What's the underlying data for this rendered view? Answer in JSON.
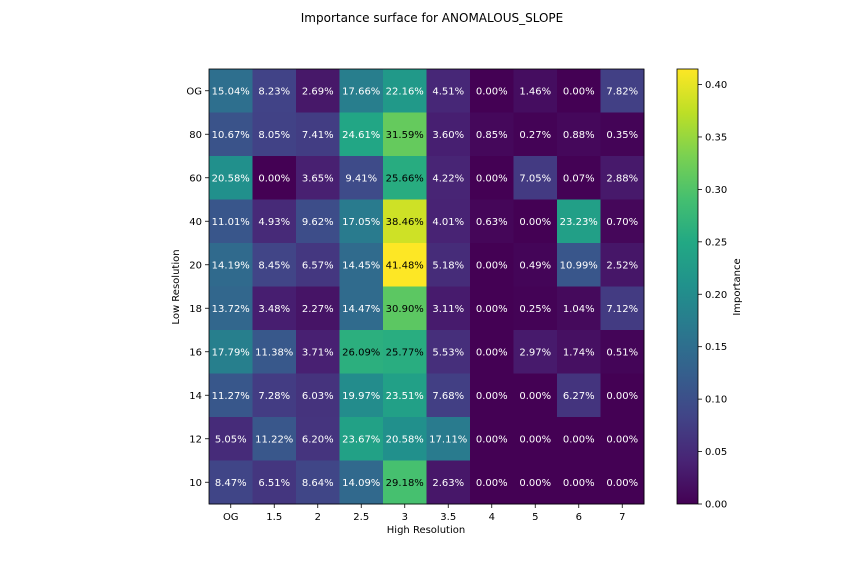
{
  "chart_data": {
    "type": "heatmap",
    "title": "Importance surface for ANOMALOUS_SLOPE",
    "xlabel": "High Resolution",
    "ylabel": "Low Resolution",
    "x_categories": [
      "OG",
      "1.5",
      "2",
      "2.5",
      "3",
      "3.5",
      "4",
      "5",
      "6",
      "7"
    ],
    "y_categories": [
      "OG",
      "80",
      "60",
      "40",
      "20",
      "18",
      "16",
      "14",
      "12",
      "10"
    ],
    "values": [
      [
        0.1504,
        0.0823,
        0.0269,
        0.1766,
        0.2216,
        0.0451,
        0.0,
        0.0146,
        0.0,
        0.0782
      ],
      [
        0.1067,
        0.0805,
        0.0741,
        0.2461,
        0.3159,
        0.036,
        0.0085,
        0.0027,
        0.0088,
        0.0035
      ],
      [
        0.2058,
        0.0,
        0.0365,
        0.0941,
        0.2566,
        0.0422,
        0.0,
        0.0705,
        0.0007,
        0.0288
      ],
      [
        0.1101,
        0.0493,
        0.0962,
        0.1705,
        0.3846,
        0.0401,
        0.0063,
        0.0,
        0.2323,
        0.007
      ],
      [
        0.1419,
        0.0845,
        0.0657,
        0.1445,
        0.4148,
        0.0518,
        0.0,
        0.0049,
        0.1099,
        0.0252
      ],
      [
        0.1372,
        0.0348,
        0.0227,
        0.1447,
        0.309,
        0.0311,
        0.0,
        0.0025,
        0.0104,
        0.0712
      ],
      [
        0.1779,
        0.1138,
        0.0371,
        0.2609,
        0.2577,
        0.0553,
        0.0,
        0.0297,
        0.0174,
        0.0051
      ],
      [
        0.1127,
        0.0728,
        0.0603,
        0.1997,
        0.2351,
        0.0768,
        0.0,
        0.0,
        0.0627,
        0.0
      ],
      [
        0.0505,
        0.1122,
        0.062,
        0.2367,
        0.2058,
        0.1711,
        0.0,
        0.0,
        0.0,
        0.0
      ],
      [
        0.0847,
        0.0651,
        0.0864,
        0.1409,
        0.2918,
        0.0263,
        0.0,
        0.0,
        0.0,
        0.0
      ]
    ],
    "cell_labels": [
      [
        "15.04%",
        "8.23%",
        "2.69%",
        "17.66%",
        "22.16%",
        "4.51%",
        "0.00%",
        "1.46%",
        "0.00%",
        "7.82%"
      ],
      [
        "10.67%",
        "8.05%",
        "7.41%",
        "24.61%",
        "31.59%",
        "3.60%",
        "0.85%",
        "0.27%",
        "0.88%",
        "0.35%"
      ],
      [
        "20.58%",
        "0.00%",
        "3.65%",
        "9.41%",
        "25.66%",
        "4.22%",
        "0.00%",
        "7.05%",
        "0.07%",
        "2.88%"
      ],
      [
        "11.01%",
        "4.93%",
        "9.62%",
        "17.05%",
        "38.46%",
        "4.01%",
        "0.63%",
        "0.00%",
        "23.23%",
        "0.70%"
      ],
      [
        "14.19%",
        "8.45%",
        "6.57%",
        "14.45%",
        "41.48%",
        "5.18%",
        "0.00%",
        "0.49%",
        "10.99%",
        "2.52%"
      ],
      [
        "13.72%",
        "3.48%",
        "2.27%",
        "14.47%",
        "30.90%",
        "3.11%",
        "0.00%",
        "0.25%",
        "1.04%",
        "7.12%"
      ],
      [
        "17.79%",
        "11.38%",
        "3.71%",
        "26.09%",
        "25.77%",
        "5.53%",
        "0.00%",
        "2.97%",
        "1.74%",
        "0.51%"
      ],
      [
        "11.27%",
        "7.28%",
        "6.03%",
        "19.97%",
        "23.51%",
        "7.68%",
        "0.00%",
        "0.00%",
        "6.27%",
        "0.00%"
      ],
      [
        "5.05%",
        "11.22%",
        "6.20%",
        "23.67%",
        "20.58%",
        "17.11%",
        "0.00%",
        "0.00%",
        "0.00%",
        "0.00%"
      ],
      [
        "8.47%",
        "6.51%",
        "8.64%",
        "14.09%",
        "29.18%",
        "2.63%",
        "0.00%",
        "0.00%",
        "0.00%",
        "0.00%"
      ]
    ],
    "colormap": "viridis",
    "colorbar": {
      "label": "Importance",
      "range": [
        0,
        0.4148
      ],
      "ticks": [
        0.0,
        0.05,
        0.1,
        0.15,
        0.2,
        0.25,
        0.3,
        0.35,
        0.4
      ],
      "tick_labels": [
        "0.00",
        "0.05",
        "0.10",
        "0.15",
        "0.20",
        "0.25",
        "0.30",
        "0.35",
        "0.40"
      ]
    },
    "grid": false
  }
}
